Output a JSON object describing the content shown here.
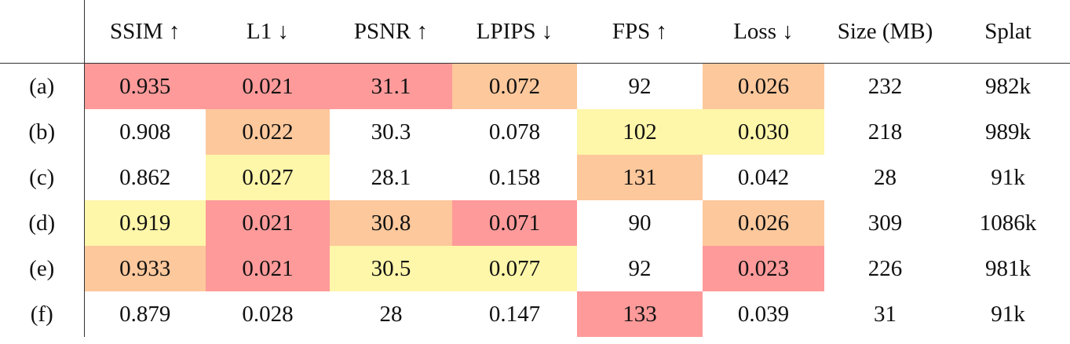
{
  "table": {
    "columns": [
      "SSIM ↑",
      "L1 ↓",
      "PSNR ↑",
      "LPIPS ↓",
      "FPS ↑",
      "Loss ↓",
      "Size (MB)",
      "Splat"
    ],
    "rows": [
      {
        "label": "(a)",
        "cells": [
          "0.935",
          "0.021",
          "31.1",
          "0.072",
          "92",
          "0.026",
          "232",
          "982k"
        ]
      },
      {
        "label": "(b)",
        "cells": [
          "0.908",
          "0.022",
          "30.3",
          "0.078",
          "102",
          "0.030",
          "218",
          "989k"
        ]
      },
      {
        "label": "(c)",
        "cells": [
          "0.862",
          "0.027",
          "28.1",
          "0.158",
          "131",
          "0.042",
          "28",
          "91k"
        ]
      },
      {
        "label": "(d)",
        "cells": [
          "0.919",
          "0.021",
          "30.8",
          "0.071",
          "90",
          "0.026",
          "309",
          "1086k"
        ]
      },
      {
        "label": "(e)",
        "cells": [
          "0.933",
          "0.021",
          "30.5",
          "0.077",
          "92",
          "0.023",
          "226",
          "981k"
        ]
      },
      {
        "label": "(f)",
        "cells": [
          "0.879",
          "0.028",
          "28",
          "0.147",
          "133",
          "0.039",
          "31",
          "91k"
        ]
      }
    ]
  }
}
